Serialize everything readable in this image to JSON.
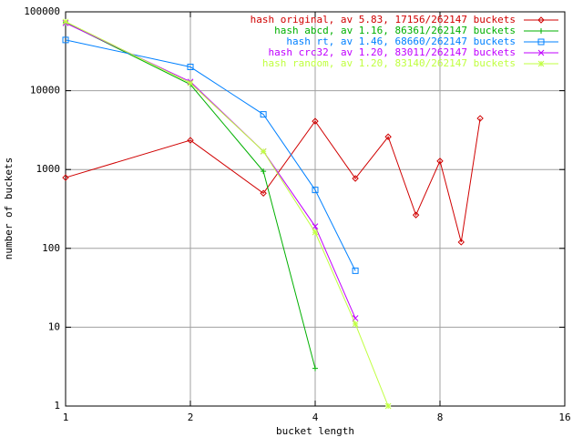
{
  "chart_data": {
    "type": "line",
    "xlabel": "bucket length",
    "ylabel": "number of buckets",
    "xscale": "log",
    "yscale": "log",
    "grid": true,
    "legend": "upper right",
    "xlim": [
      1,
      16
    ],
    "xticks": [
      1,
      2,
      4,
      8,
      16
    ],
    "ylim": [
      1,
      100000
    ],
    "yticks": [
      1,
      10,
      100,
      1000,
      10000,
      100000
    ],
    "series": [
      {
        "name": "hash original, av 5.83, 17156/262147 buckets",
        "color": "#d00000",
        "marker": "diamond",
        "x": [
          1,
          2,
          3,
          4,
          5,
          6,
          7,
          8,
          9,
          10
        ],
        "values": [
          790,
          2350,
          500,
          4100,
          770,
          2600,
          265,
          1280,
          120,
          4450
        ]
      },
      {
        "name": "hash abcd, av 1.16, 86361/262147 buckets",
        "color": "#00b000",
        "marker": "plus",
        "x": [
          1,
          2,
          3,
          4
        ],
        "values": [
          73000,
          12000,
          950,
          3
        ]
      },
      {
        "name": "hash rt, av 1.46, 68660/262147 buckets",
        "color": "#0080ff",
        "marker": "square",
        "x": [
          1,
          2,
          3,
          4,
          5
        ],
        "values": [
          44000,
          20000,
          5000,
          550,
          52
        ]
      },
      {
        "name": "hash crc32, av 1.20, 83011/262147 buckets",
        "color": "#c000ff",
        "marker": "x",
        "x": [
          1,
          2,
          3,
          4,
          5
        ],
        "values": [
          72000,
          13000,
          1700,
          190,
          13
        ]
      },
      {
        "name": "hash random, av 1.20, 83140/262147 buckets",
        "color": "#c0ff40",
        "marker": "star",
        "x": [
          1,
          2,
          3,
          4,
          5,
          6
        ],
        "values": [
          75000,
          12500,
          1700,
          160,
          11,
          1
        ]
      }
    ]
  }
}
